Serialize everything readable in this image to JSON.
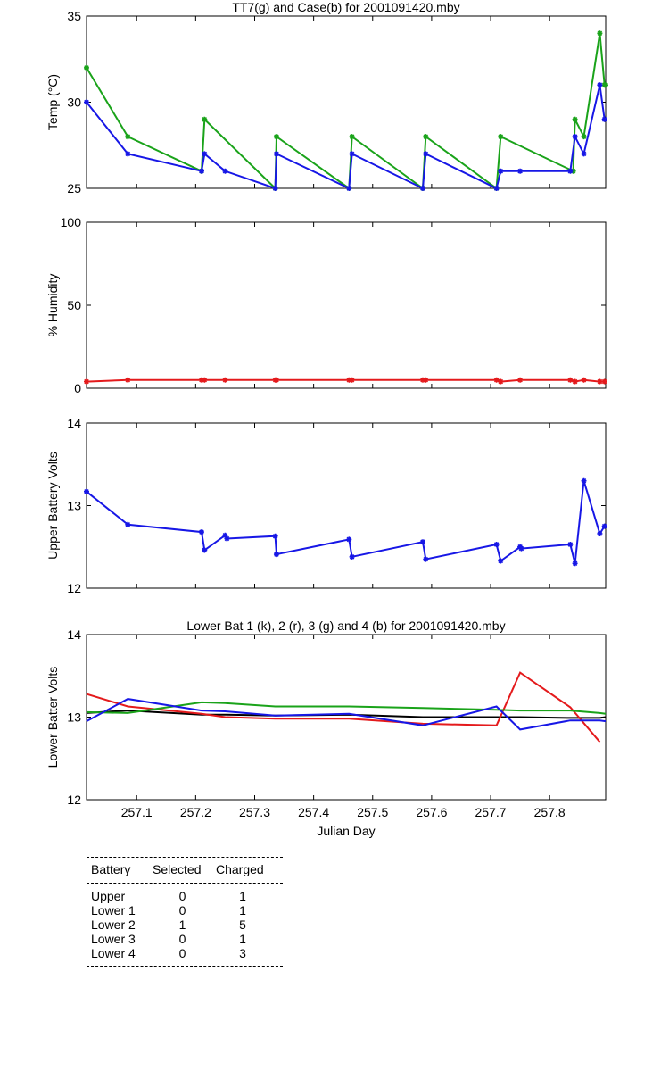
{
  "colors": {
    "black": "#000000",
    "red": "#e41a1c",
    "green": "#1aa31a",
    "blue": "#1717e6"
  },
  "x_axis": {
    "label": "Julian Day",
    "range": [
      257.015,
      257.895
    ],
    "ticks": [
      257.1,
      257.2,
      257.3,
      257.4,
      257.5,
      257.6,
      257.7,
      257.8
    ],
    "tick_labels": [
      "257.1",
      "257.2",
      "257.3",
      "257.4",
      "257.5",
      "257.6",
      "257.7",
      "257.8"
    ]
  },
  "chart_data": [
    {
      "id": "temp",
      "type": "line",
      "title": "TT7(g) and Case(b) for 2001091420.mby",
      "ylabel": "Temp  (°C)",
      "ylim": [
        25,
        35
      ],
      "yticks": [
        25,
        30,
        35
      ],
      "ytick_labels": [
        "25",
        "30",
        "35"
      ],
      "series": [
        {
          "name": "TT7",
          "color": "green",
          "markers": true,
          "x": [
            257.015,
            257.085,
            257.21,
            257.215,
            257.335,
            257.337,
            257.46,
            257.465,
            257.585,
            257.59,
            257.71,
            257.717,
            257.84,
            257.843,
            257.858,
            257.885,
            257.893,
            257.895
          ],
          "y": [
            32,
            28,
            26,
            29,
            25,
            28,
            25,
            28,
            25,
            28,
            25,
            28,
            26,
            29,
            28,
            34,
            31,
            31
          ]
        },
        {
          "name": "Case",
          "color": "blue",
          "markers": true,
          "x": [
            257.015,
            257.085,
            257.21,
            257.215,
            257.25,
            257.335,
            257.337,
            257.46,
            257.465,
            257.585,
            257.59,
            257.71,
            257.717,
            257.75,
            257.835,
            257.843,
            257.858,
            257.885,
            257.893
          ],
          "y": [
            30,
            27,
            26,
            27,
            26,
            25,
            27,
            25,
            27,
            25,
            27,
            25,
            26,
            26,
            26,
            28,
            27,
            31,
            29
          ]
        }
      ]
    },
    {
      "id": "humidity",
      "type": "line",
      "title": "",
      "ylabel": "% Humidity",
      "ylim": [
        0,
        100
      ],
      "yticks": [
        0,
        50,
        100
      ],
      "ytick_labels": [
        "0",
        "50",
        "100"
      ],
      "series": [
        {
          "name": "Humidity",
          "color": "red",
          "markers": true,
          "x": [
            257.015,
            257.085,
            257.21,
            257.215,
            257.25,
            257.335,
            257.337,
            257.46,
            257.465,
            257.585,
            257.59,
            257.71,
            257.717,
            257.75,
            257.835,
            257.843,
            257.858,
            257.885,
            257.893
          ],
          "y": [
            4,
            5,
            5,
            5,
            5,
            5,
            5,
            5,
            5,
            5,
            5,
            5,
            4,
            5,
            5,
            4,
            5,
            4,
            4
          ]
        }
      ]
    },
    {
      "id": "upper",
      "type": "line",
      "title": "",
      "ylabel": "Upper Battery Volts",
      "ylim": [
        12,
        14
      ],
      "yticks": [
        12,
        13,
        14
      ],
      "ytick_labels": [
        "12",
        "13",
        "14"
      ],
      "series": [
        {
          "name": "Upper battery",
          "color": "blue",
          "markers": true,
          "x": [
            257.015,
            257.085,
            257.21,
            257.215,
            257.25,
            257.253,
            257.335,
            257.337,
            257.46,
            257.465,
            257.585,
            257.59,
            257.71,
            257.717,
            257.75,
            257.752,
            257.835,
            257.843,
            257.858,
            257.885,
            257.893
          ],
          "y": [
            13.17,
            12.77,
            12.68,
            12.46,
            12.64,
            12.6,
            12.63,
            12.41,
            12.59,
            12.38,
            12.56,
            12.35,
            12.53,
            12.33,
            12.5,
            12.48,
            12.53,
            12.3,
            13.3,
            12.66,
            12.75
          ]
        }
      ]
    },
    {
      "id": "lower",
      "type": "line",
      "title": "Lower Bat 1 (k), 2 (r), 3 (g) and 4 (b) for 2001091420.mby",
      "ylabel": "Lower Batter Volts",
      "ylim": [
        12,
        14
      ],
      "yticks": [
        12,
        13,
        14
      ],
      "ytick_labels": [
        "12",
        "13",
        "14"
      ],
      "series": [
        {
          "name": "1 (k)",
          "color": "black",
          "markers": false,
          "x": [
            257.015,
            257.085,
            257.21,
            257.25,
            257.335,
            257.46,
            257.585,
            257.71,
            257.75,
            257.835,
            257.885,
            257.895
          ],
          "y": [
            13.05,
            13.08,
            13.03,
            13.03,
            13.02,
            13.03,
            13.0,
            13.0,
            13.0,
            12.99,
            12.99,
            13.0
          ]
        },
        {
          "name": "2 (r)",
          "color": "red",
          "markers": false,
          "x": [
            257.015,
            257.085,
            257.21,
            257.25,
            257.335,
            257.46,
            257.585,
            257.71,
            257.75,
            257.835,
            257.885
          ],
          "y": [
            13.28,
            13.13,
            13.04,
            13.0,
            12.98,
            12.98,
            12.92,
            12.9,
            13.54,
            13.12,
            12.7
          ]
        },
        {
          "name": "3 (g)",
          "color": "green",
          "markers": false,
          "x": [
            257.015,
            257.085,
            257.21,
            257.25,
            257.335,
            257.46,
            257.585,
            257.71,
            257.75,
            257.835,
            257.885,
            257.895
          ],
          "y": [
            13.06,
            13.05,
            13.18,
            13.17,
            13.13,
            13.13,
            13.11,
            13.09,
            13.08,
            13.08,
            13.05,
            13.04
          ]
        },
        {
          "name": "4 (b)",
          "color": "blue",
          "markers": false,
          "x": [
            257.015,
            257.085,
            257.21,
            257.25,
            257.335,
            257.46,
            257.585,
            257.71,
            257.75,
            257.835,
            257.885,
            257.895
          ],
          "y": [
            12.95,
            13.22,
            13.08,
            13.07,
            13.02,
            13.04,
            12.9,
            13.13,
            12.85,
            12.96,
            12.96,
            12.95
          ]
        }
      ]
    }
  ],
  "table": {
    "headers": [
      "Battery",
      "Selected",
      "Charged"
    ],
    "rows": [
      [
        "Upper",
        "0",
        "1"
      ],
      [
        "Lower 1",
        "0",
        "1"
      ],
      [
        "Lower 2",
        "1",
        "5"
      ],
      [
        "Lower 3",
        "0",
        "1"
      ],
      [
        "Lower 4",
        "0",
        "3"
      ]
    ]
  }
}
